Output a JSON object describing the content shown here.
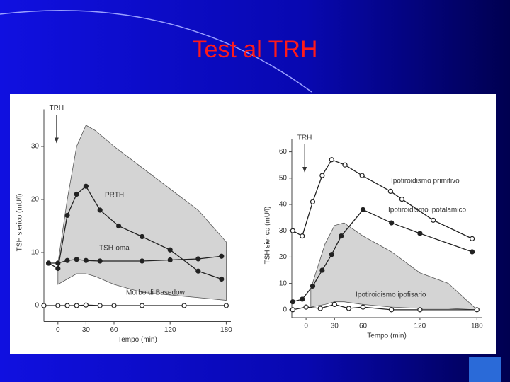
{
  "slide": {
    "title": "Test al TRH"
  },
  "chart_data": [
    {
      "type": "line",
      "annotation": "TRH",
      "ylabel": "TSH sierico (mU/l)",
      "xlabel": "Tempo (min)",
      "xlim": [
        -15,
        185
      ],
      "ylim": [
        -3,
        37
      ],
      "xticks": [
        0,
        30,
        60,
        120,
        180
      ],
      "yticks": [
        0,
        10,
        20,
        30
      ],
      "band": {
        "color": "#d4d4d4",
        "x": [
          0,
          10,
          20,
          30,
          40,
          60,
          90,
          120,
          150,
          180
        ],
        "upper": [
          8,
          20,
          30,
          34,
          33,
          30,
          26,
          22,
          18,
          12
        ],
        "lower": [
          4,
          5,
          6,
          6,
          5.5,
          4,
          2.5,
          2,
          1.5,
          1
        ]
      },
      "series": [
        {
          "name": "PRTH",
          "color": "#222222",
          "marker": "filled",
          "x": [
            -10,
            0,
            10,
            20,
            30,
            45,
            65,
            90,
            120,
            150,
            175
          ],
          "values": [
            8,
            7,
            17,
            21,
            22.5,
            18,
            15,
            13,
            10.5,
            6.5,
            5
          ]
        },
        {
          "name": "TSH-oma",
          "color": "#222222",
          "marker": "filled",
          "x": [
            -10,
            0,
            10,
            20,
            30,
            45,
            90,
            120,
            150,
            175
          ],
          "values": [
            8,
            8,
            8.5,
            8.7,
            8.5,
            8.4,
            8.4,
            8.6,
            8.8,
            9.3
          ]
        },
        {
          "name": "Morbo di Basedow",
          "color": "#222222",
          "marker": "open",
          "x": [
            -15,
            0,
            10,
            20,
            30,
            45,
            60,
            90,
            135,
            180
          ],
          "values": [
            0,
            0,
            0,
            0,
            0.1,
            0,
            0,
            0,
            0,
            0
          ]
        }
      ]
    },
    {
      "type": "line",
      "annotation": "TRH",
      "ylabel": "TSH sierico (mU/l)",
      "xlabel": "Tempo (min)",
      "xlim": [
        -15,
        185
      ],
      "ylim": [
        -3,
        65
      ],
      "xticks": [
        0,
        30,
        60,
        120,
        180
      ],
      "yticks": [
        0,
        10,
        20,
        30,
        40,
        50,
        60
      ],
      "band": {
        "color": "#d4d4d4",
        "x": [
          5,
          20,
          30,
          40,
          60,
          90,
          120,
          150,
          180
        ],
        "upper": [
          8,
          25,
          32,
          33,
          28,
          22,
          14,
          10,
          0
        ],
        "lower": [
          1,
          2,
          3,
          3,
          2,
          1,
          0.5,
          0.5,
          0
        ]
      },
      "series": [
        {
          "name": "Ipotiroidismo primitivo",
          "color": "#222222",
          "marker": "open",
          "x": [
            -14,
            -4,
            7,
            17,
            27,
            41,
            59,
            89,
            101,
            134,
            175
          ],
          "values": [
            30,
            28,
            41,
            51,
            57,
            55,
            51,
            45,
            42,
            34,
            27
          ]
        },
        {
          "name": "Ipotiroidismo ipotalamico",
          "color": "#222222",
          "marker": "filled",
          "x": [
            -14,
            -4,
            7,
            17,
            27,
            37,
            60,
            90,
            120,
            175
          ],
          "values": [
            3,
            4,
            9,
            15,
            21,
            28,
            38,
            33,
            29,
            22
          ]
        },
        {
          "name": "Ipotiroidismo ipofisario",
          "color": "#222222",
          "marker": "open",
          "x": [
            -14,
            0,
            15,
            30,
            45,
            60,
            90,
            120,
            180
          ],
          "values": [
            0,
            1,
            0.5,
            2,
            0.5,
            1,
            0,
            0,
            0
          ]
        }
      ]
    }
  ]
}
